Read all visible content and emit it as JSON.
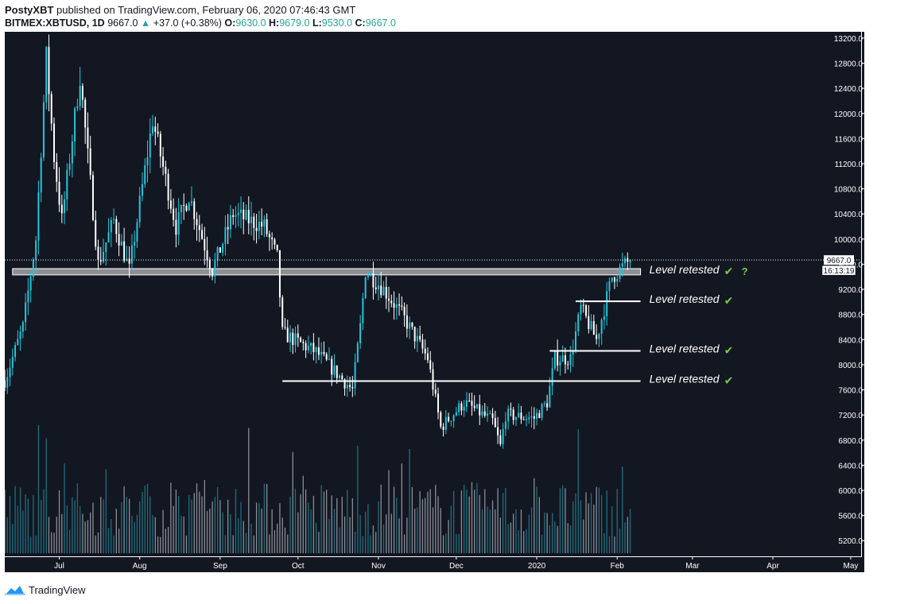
{
  "header": {
    "author": "PostyXBT",
    "published_text": " published on TradingView.com, February 06, 2020 07:46:43 GMT",
    "symbol": "BITMEX:XBTUSD, 1D",
    "last": "9667.0",
    "arrow": "▲",
    "change": "+37.0 (+0.38%)",
    "o_label": "O:",
    "o_value": "9630.0",
    "h_label": "H:",
    "h_value": "9679.0",
    "l_label": "L:",
    "l_value": "9530.0",
    "c_label": "C:",
    "c_value": "9667.0"
  },
  "footer": {
    "brand": "TradingView",
    "logo_icon": "tradingview-logo-icon"
  },
  "colors": {
    "background": "#131722",
    "up": "#26c6da",
    "down": "#ffffff",
    "grid_text": "#ffffff",
    "check": "#7ac943",
    "question": "#7ac943"
  },
  "chart_data": {
    "type": "candlestick",
    "symbol": "BITMEX:XBTUSD",
    "interval": "1D",
    "y_range": [
      4950,
      13300
    ],
    "y_ticks": [
      5200,
      5600,
      6000,
      6400,
      6800,
      7200,
      7600,
      8000,
      8400,
      8800,
      9200,
      9600,
      10000,
      10400,
      10800,
      11200,
      11600,
      12000,
      12400,
      12800,
      13200
    ],
    "x_start": "2019-06-10",
    "x_end": "2020-05-05",
    "x_ticks": [
      {
        "date": "2019-07-01",
        "label": "Jul"
      },
      {
        "date": "2019-08-01",
        "label": "Aug"
      },
      {
        "date": "2019-09-01",
        "label": "Sep"
      },
      {
        "date": "2019-10-01",
        "label": "Oct"
      },
      {
        "date": "2019-11-01",
        "label": "Nov"
      },
      {
        "date": "2019-12-01",
        "label": "Dec"
      },
      {
        "date": "2020-01-01",
        "label": "2020"
      },
      {
        "date": "2020-02-01",
        "label": "Feb"
      },
      {
        "date": "2020-03-01",
        "label": "Mar"
      },
      {
        "date": "2020-04-01",
        "label": "Apr"
      },
      {
        "date": "2020-05-01",
        "label": "May"
      }
    ],
    "price_keypoints": [
      [
        "2019-06-10",
        7750
      ],
      [
        "2019-06-17",
        8600
      ],
      [
        "2019-06-22",
        10000
      ],
      [
        "2019-06-26",
        12900
      ],
      [
        "2019-06-29",
        11300
      ],
      [
        "2019-07-02",
        10300
      ],
      [
        "2019-07-09",
        12600
      ],
      [
        "2019-07-16",
        9600
      ],
      [
        "2019-07-22",
        10300
      ],
      [
        "2019-07-28",
        9500
      ],
      [
        "2019-08-06",
        11900
      ],
      [
        "2019-08-15",
        10200
      ],
      [
        "2019-08-20",
        10700
      ],
      [
        "2019-08-29",
        9500
      ],
      [
        "2019-09-06",
        10400
      ],
      [
        "2019-09-18",
        10200
      ],
      [
        "2019-09-23",
        9700
      ],
      [
        "2019-09-25",
        8500
      ],
      [
        "2019-10-08",
        8200
      ],
      [
        "2019-10-22",
        7600
      ],
      [
        "2019-10-25",
        8600
      ],
      [
        "2019-10-27",
        9500
      ],
      [
        "2019-11-03",
        9200
      ],
      [
        "2019-11-10",
        8800
      ],
      [
        "2019-11-20",
        8100
      ],
      [
        "2019-11-25",
        7000
      ],
      [
        "2019-12-04",
        7400
      ],
      [
        "2019-12-15",
        7100
      ],
      [
        "2019-12-18",
        6700
      ],
      [
        "2019-12-20",
        7200
      ],
      [
        "2019-12-31",
        7150
      ],
      [
        "2020-01-05",
        7400
      ],
      [
        "2020-01-08",
        8100
      ],
      [
        "2020-01-14",
        8100
      ],
      [
        "2020-01-18",
        8900
      ],
      [
        "2020-01-24",
        8400
      ],
      [
        "2020-01-30",
        9400
      ],
      [
        "2020-02-06",
        9667
      ]
    ],
    "last_price": 9667.0,
    "last_price_label": "9667.0",
    "countdown_label": "16:13:19",
    "zone": {
      "from": "2019-06-13",
      "to": "2020-02-10",
      "low": 9430,
      "high": 9530
    },
    "levels": [
      {
        "price": 9480,
        "from": "2019-06-13",
        "to": "2020-02-10",
        "label": "Level retested",
        "question": true
      },
      {
        "price": 9010,
        "from": "2020-01-16",
        "to": "2020-02-10",
        "label": "Level retested",
        "question": false
      },
      {
        "price": 8220,
        "from": "2020-01-06",
        "to": "2020-02-10",
        "label": "Level retested",
        "question": false
      },
      {
        "price": 7740,
        "from": "2019-09-25",
        "to": "2020-02-10",
        "label": "Level retested",
        "question": false
      }
    ],
    "annotation_check": "✔",
    "annotation_question": "?"
  }
}
